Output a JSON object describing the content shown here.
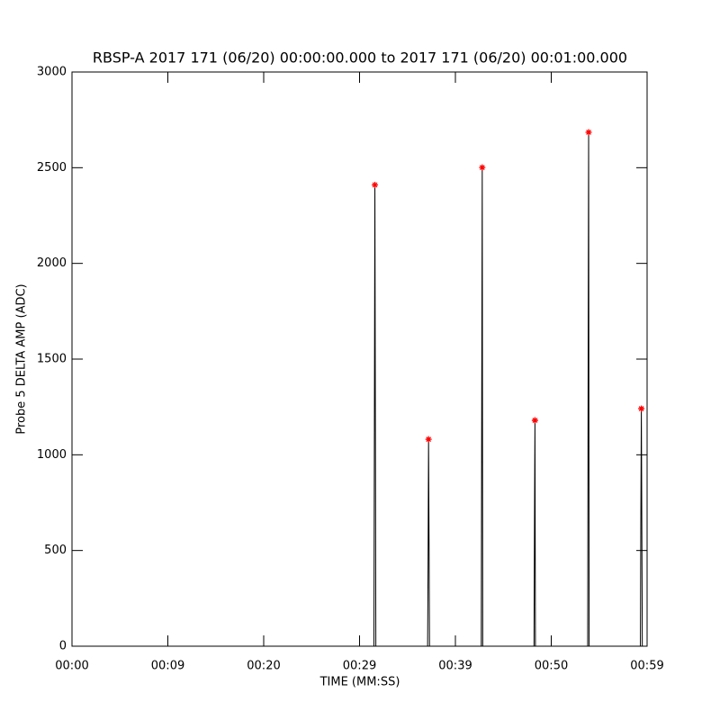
{
  "chart_data": {
    "type": "line",
    "title": "RBSP-A 2017 171 (06/20) 00:00:00.000 to 2017 171 (06/20) 00:01:00.000",
    "xlabel": "TIME (MM:SS)",
    "ylabel": "Probe 5 DELTA AMP (ADC)",
    "xlim": [
      0,
      60
    ],
    "ylim": [
      0,
      3000
    ],
    "xticks": [
      {
        "value": 0,
        "label": "00:00"
      },
      {
        "value": 10,
        "label": "00:09"
      },
      {
        "value": 20,
        "label": "00:20"
      },
      {
        "value": 30,
        "label": "00:29"
      },
      {
        "value": 40,
        "label": "00:39"
      },
      {
        "value": 50,
        "label": "00:50"
      },
      {
        "value": 60,
        "label": "00:59"
      }
    ],
    "yticks": [
      0,
      500,
      1000,
      1500,
      2000,
      2500,
      3000
    ],
    "series": [
      {
        "color": "#000000",
        "x": [
          0,
          31.5,
          31.55,
          31.6,
          31.7,
          37.1,
          37.15,
          37.2,
          37.25,
          37.3,
          42.7,
          42.75,
          42.8,
          42.85,
          48.2,
          48.25,
          48.3,
          48.35,
          53.8,
          53.85,
          53.9,
          53.95,
          59.3,
          59.35,
          59.4,
          59.5,
          60
        ],
        "values": [
          0,
          0,
          1160,
          2410,
          0,
          0,
          430,
          1081,
          560,
          0,
          0,
          1340,
          2501,
          0,
          0,
          630,
          1180,
          0,
          0,
          1490,
          2685,
          0,
          0,
          700,
          1241,
          0,
          0
        ]
      },
      {
        "color": "#ff0000",
        "marker": "asterisk",
        "x": [
          31.6,
          37.2,
          42.8,
          48.3,
          53.9,
          59.4
        ],
        "values": [
          2410,
          1081,
          2501,
          1180,
          2685,
          1241
        ]
      }
    ]
  }
}
